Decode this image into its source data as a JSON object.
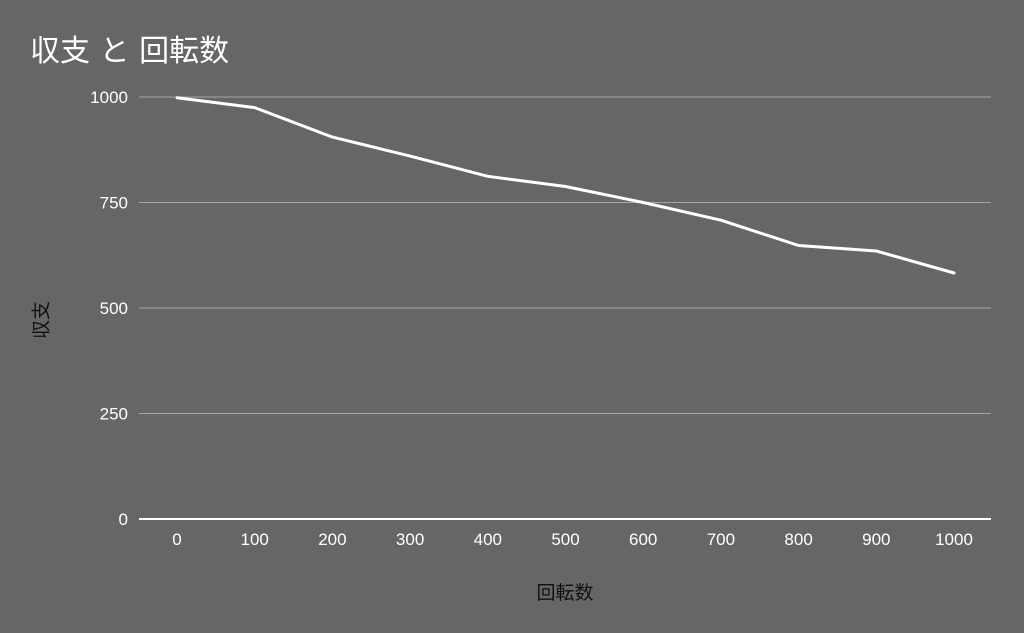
{
  "chart_data": {
    "type": "line",
    "title": "収支 と 回転数",
    "xlabel": "回転数",
    "ylabel": "収支",
    "x": [
      0,
      100,
      200,
      300,
      400,
      500,
      600,
      700,
      800,
      900,
      1000
    ],
    "series": [
      {
        "values": [
          998,
          975,
          905,
          860,
          812,
          788,
          750,
          708,
          648,
          635,
          583
        ]
      }
    ],
    "xticks": [
      "0",
      "100",
      "200",
      "300",
      "400",
      "500",
      "600",
      "700",
      "800",
      "900",
      "1000"
    ],
    "yticks": [
      0,
      250,
      500,
      750,
      1000
    ],
    "ylim": [
      0,
      1000
    ],
    "grid": "horizontal",
    "legend": "none",
    "colors": {
      "background": "#666666",
      "line": "#ffffff",
      "grid": "#a6a6a6",
      "axis": "#ffffff",
      "text": "#ffffff",
      "axis_title": "#111111"
    }
  }
}
